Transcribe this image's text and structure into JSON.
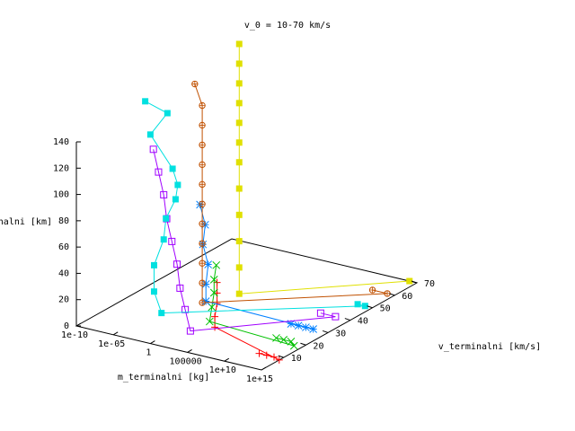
{
  "chart_data": {
    "type": "scatter",
    "title": "v_0 = 10-70 km/s",
    "xlabel": "m_terminalni [kg]",
    "ylabel": "v_terminalni [km/s]",
    "zlabel": "h_terminalni [km]",
    "x_scale": "log",
    "x_range": [
      1e-10,
      1000000000000000.0
    ],
    "y_range": [
      0,
      70
    ],
    "z_range": [
      0,
      140
    ],
    "x_ticks": [
      "1e-10",
      "1e-05",
      "1",
      "100000",
      "1e+10",
      "1e+15"
    ],
    "y_ticks": [
      "10",
      "20",
      "30",
      "40",
      "50",
      "60",
      "70"
    ],
    "z_ticks": [
      "0",
      "20",
      "40",
      "60",
      "80",
      "100",
      "120",
      "140"
    ],
    "grid": false,
    "legend": "none",
    "series": [
      {
        "color": "#ff0000",
        "marker": "plus",
        "points": [
          {
            "m": 1000000000000.0,
            "v": 9,
            "h": 0
          },
          {
            "m": 10000000000000.0,
            "v": 9,
            "h": 0
          },
          {
            "m": 100000000000000.0,
            "v": 9,
            "h": 0
          },
          {
            "m": 1000000000000000.0,
            "v": 8,
            "h": 0
          },
          {
            "m": 1000000.0,
            "v": 9,
            "h": 12
          },
          {
            "m": 1000000.0,
            "v": 9,
            "h": 20
          },
          {
            "m": 1000000.0,
            "v": 10,
            "h": 29
          },
          {
            "m": 1000000.0,
            "v": 10,
            "h": 37
          },
          {
            "m": 1000000.0,
            "v": 10,
            "h": 45
          }
        ]
      },
      {
        "color": "#00c000",
        "marker": "cross",
        "points": [
          {
            "m": 100000000000.0,
            "v": 20,
            "h": 0
          },
          {
            "m": 1000000000000.0,
            "v": 20,
            "h": 0
          },
          {
            "m": 10000000000000.0,
            "v": 20,
            "h": 0
          },
          {
            "m": 100000000000000.0,
            "v": 18,
            "h": 0
          },
          {
            "m": 100000.0,
            "v": 10,
            "h": 14
          },
          {
            "m": 100000.0,
            "v": 11,
            "h": 24
          },
          {
            "m": 100000.0,
            "v": 12,
            "h": 34
          },
          {
            "m": 100000.0,
            "v": 12,
            "h": 44
          },
          {
            "m": 100000.0,
            "v": 13,
            "h": 54
          }
        ]
      },
      {
        "color": "#0080ff",
        "marker": "star",
        "points": [
          {
            "m": 10000000000.0,
            "v": 30,
            "h": 0
          },
          {
            "m": 100000000000.0,
            "v": 30,
            "h": 0
          },
          {
            "m": 1000000000000.0,
            "v": 30,
            "h": 0
          },
          {
            "m": 10000000000000.0,
            "v": 30,
            "h": 0
          },
          {
            "m": 1000.0,
            "v": 15,
            "h": 22
          },
          {
            "m": 1000.0,
            "v": 15,
            "h": 35
          },
          {
            "m": 1000.0,
            "v": 16,
            "h": 49
          },
          {
            "m": 100.0,
            "v": 17,
            "h": 62
          },
          {
            "m": 100.0,
            "v": 18,
            "h": 76
          },
          {
            "m": 10.0,
            "v": 19,
            "h": 89
          }
        ]
      },
      {
        "color": "#a000ff",
        "marker": "square-open",
        "points": [
          {
            "m": 100000000000.0,
            "v": 40,
            "h": 0
          },
          {
            "m": 10000000000000.0,
            "v": 40,
            "h": 0
          },
          {
            "m": 1000.0,
            "v": 8,
            "h": 6
          },
          {
            "m": 100.0,
            "v": 9,
            "h": 20
          },
          {
            "m": 10.0,
            "v": 10,
            "h": 34
          },
          {
            "m": 1,
            "v": 12,
            "h": 49
          },
          {
            "m": 0.1,
            "v": 13,
            "h": 64
          },
          {
            "m": 0.01,
            "v": 14,
            "h": 79
          },
          {
            "m": 0.001,
            "v": 16,
            "h": 94
          },
          {
            "m": 0.0001,
            "v": 17,
            "h": 109
          },
          {
            "m": 1e-05,
            "v": 18,
            "h": 124
          }
        ]
      },
      {
        "color": "#00e0e0",
        "marker": "square-filled",
        "points": [
          {
            "m": 10000000000000.0,
            "v": 50,
            "h": 0
          },
          {
            "m": 100000000000000.0,
            "v": 50,
            "h": 0
          },
          {
            "m": 0.001,
            "v": 15,
            "h": 5
          },
          {
            "m": 0.0001,
            "v": 15,
            "h": 20
          },
          {
            "m": 0.0001,
            "v": 15,
            "h": 40
          },
          {
            "m": 0.001,
            "v": 16,
            "h": 60
          },
          {
            "m": 0.001,
            "v": 17,
            "h": 75
          },
          {
            "m": 0.01,
            "v": 18,
            "h": 90
          },
          {
            "m": 0.01,
            "v": 19,
            "h": 100
          },
          {
            "m": 0.001,
            "v": 20,
            "h": 110
          },
          {
            "m": 1e-06,
            "v": 20,
            "h": 132
          },
          {
            "m": 0.0001,
            "v": 21,
            "h": 150
          },
          {
            "m": 1e-07,
            "v": 21,
            "h": 155
          }
        ]
      },
      {
        "color": "#c05000",
        "marker": "circle-plus",
        "points": [
          {
            "m": 1000000000000.0,
            "v": 60,
            "h": 0
          },
          {
            "m": 100000000000000.0,
            "v": 60,
            "h": 0
          },
          {
            "m": 0.01,
            "v": 30,
            "h": 0
          },
          {
            "m": 0.01,
            "v": 30,
            "h": 15
          },
          {
            "m": 0.01,
            "v": 30,
            "h": 30
          },
          {
            "m": 0.01,
            "v": 30,
            "h": 45
          },
          {
            "m": 0.01,
            "v": 30,
            "h": 60
          },
          {
            "m": 0.01,
            "v": 30,
            "h": 75
          },
          {
            "m": 0.01,
            "v": 30,
            "h": 90
          },
          {
            "m": 0.01,
            "v": 30,
            "h": 105
          },
          {
            "m": 0.01,
            "v": 30,
            "h": 120
          },
          {
            "m": 0.01,
            "v": 30,
            "h": 135
          },
          {
            "m": 0.01,
            "v": 30,
            "h": 150
          },
          {
            "m": 0.001,
            "v": 30,
            "h": 165
          }
        ]
      },
      {
        "color": "#e0e000",
        "marker": "square-filled",
        "points": [
          {
            "m": 100000000000000.0,
            "v": 70,
            "h": 0
          },
          {
            "m": 1,
            "v": 40,
            "h": 0
          },
          {
            "m": 1,
            "v": 40,
            "h": 20
          },
          {
            "m": 1,
            "v": 40,
            "h": 40
          },
          {
            "m": 1,
            "v": 40,
            "h": 60
          },
          {
            "m": 1,
            "v": 40,
            "h": 80
          },
          {
            "m": 1,
            "v": 40,
            "h": 100
          },
          {
            "m": 1,
            "v": 40,
            "h": 115
          },
          {
            "m": 1,
            "v": 40,
            "h": 130
          },
          {
            "m": 1,
            "v": 40,
            "h": 145
          },
          {
            "m": 1,
            "v": 40,
            "h": 160
          },
          {
            "m": 1,
            "v": 40,
            "h": 175
          },
          {
            "m": 1,
            "v": 40,
            "h": 190
          }
        ]
      }
    ]
  }
}
